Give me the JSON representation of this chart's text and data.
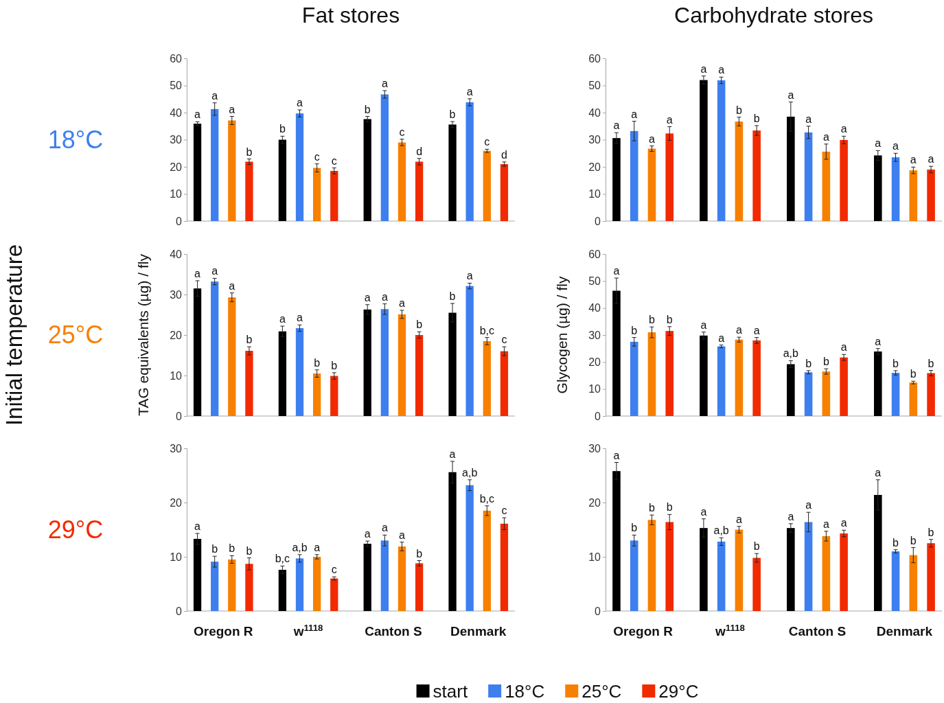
{
  "chart_data": [
    {
      "type": "bar",
      "title": "Fat stores",
      "annotations": [
        "18°C"
      ],
      "categories": [
        null,
        null,
        null,
        null
      ],
      "ylim": [
        0,
        60
      ],
      "yticks": [
        0,
        10,
        20,
        30,
        40,
        50,
        60
      ],
      "tick_labels": "y",
      "series": [
        {
          "color": "#000000",
          "values": [
            35.9,
            30.0,
            37.6,
            35.6
          ],
          "errors": [
            0.7,
            1.3,
            1.0,
            1.1
          ],
          "value_labels": [
            "a",
            "b",
            "b",
            "b"
          ]
        },
        {
          "color": "#3d7fef",
          "values": [
            41.3,
            39.7,
            46.7,
            43.8
          ],
          "errors": [
            2.3,
            1.3,
            1.4,
            1.3
          ],
          "value_labels": [
            "a",
            "a",
            "a",
            "a"
          ]
        },
        {
          "color": "#f78000",
          "values": [
            37.1,
            19.6,
            29.0,
            25.9
          ],
          "errors": [
            1.5,
            1.5,
            1.2,
            0.6
          ],
          "value_labels": [
            "a",
            "c",
            "c",
            "c"
          ]
        },
        {
          "color": "#f22a00",
          "values": [
            21.9,
            18.5,
            21.9,
            21.0
          ],
          "errors": [
            1.0,
            1.1,
            1.2,
            0.8
          ],
          "value_labels": [
            "b",
            "c",
            "d",
            "d"
          ]
        }
      ]
    },
    {
      "type": "bar",
      "title": "Carbohydrate stores",
      "categories": [
        null,
        null,
        null,
        null
      ],
      "ylim": [
        0,
        60
      ],
      "yticks": [
        0,
        10,
        20,
        30,
        40,
        50,
        60
      ],
      "tick_labels": "y",
      "series": [
        {
          "color": "#000000",
          "values": [
            30.6,
            52.0,
            38.5,
            24.2
          ],
          "errors": [
            2.0,
            1.5,
            5.4,
            1.8
          ],
          "value_labels": [
            "a",
            "a",
            "a",
            "a"
          ]
        },
        {
          "color": "#3d7fef",
          "values": [
            33.2,
            51.9,
            32.7,
            23.5
          ],
          "errors": [
            3.6,
            1.2,
            2.3,
            1.5
          ],
          "value_labels": [
            "a",
            "a",
            "a",
            "a"
          ]
        },
        {
          "color": "#f78000",
          "values": [
            26.7,
            36.7,
            25.6,
            18.7
          ],
          "errors": [
            1.0,
            1.6,
            2.8,
            1.2
          ],
          "value_labels": [
            "a",
            "b",
            "a",
            "a"
          ]
        },
        {
          "color": "#f22a00",
          "values": [
            32.3,
            33.4,
            29.9,
            19.0
          ],
          "errors": [
            2.5,
            1.8,
            1.4,
            1.2
          ],
          "value_labels": [
            "a",
            "b",
            "a",
            "a"
          ]
        }
      ]
    },
    {
      "type": "bar",
      "ylabel": "TAG equivalents (µg) / fly",
      "annotations": [
        "25°C",
        "Initial temperature"
      ],
      "categories": [
        null,
        null,
        null,
        null
      ],
      "ylim": [
        0,
        40
      ],
      "yticks": [
        0,
        10,
        20,
        30,
        40
      ],
      "tick_labels": "y",
      "series": [
        {
          "color": "#000000",
          "values": [
            31.5,
            20.9,
            26.3,
            25.5
          ],
          "errors": [
            1.9,
            1.3,
            1.2,
            2.3
          ],
          "value_labels": [
            "a",
            "a",
            "a",
            "b"
          ]
        },
        {
          "color": "#3d7fef",
          "values": [
            33.2,
            21.7,
            26.4,
            32.1
          ],
          "errors": [
            0.8,
            0.8,
            1.3,
            0.7
          ],
          "value_labels": [
            "a",
            "a",
            "a",
            "a"
          ]
        },
        {
          "color": "#f78000",
          "values": [
            29.3,
            10.5,
            25.1,
            18.5
          ],
          "errors": [
            1.1,
            0.9,
            1.0,
            0.9
          ],
          "value_labels": [
            "a",
            "b",
            "a",
            "b,c"
          ]
        },
        {
          "color": "#f22a00",
          "values": [
            16.1,
            9.9,
            20.0,
            16.0
          ],
          "errors": [
            1.0,
            0.8,
            0.8,
            1.1
          ],
          "value_labels": [
            "b",
            "b",
            "b",
            "c"
          ]
        }
      ]
    },
    {
      "type": "bar",
      "ylabel": "Glycogen (µg) / fly",
      "categories": [
        null,
        null,
        null,
        null
      ],
      "ylim": [
        0,
        60
      ],
      "yticks": [
        0,
        10,
        20,
        30,
        40,
        50,
        60
      ],
      "tick_labels": "y",
      "series": [
        {
          "color": "#000000",
          "values": [
            46.4,
            29.8,
            19.2,
            23.9
          ],
          "errors": [
            4.7,
            1.3,
            1.3,
            1.1
          ],
          "value_labels": [
            "a",
            "a",
            "a,b",
            "a"
          ]
        },
        {
          "color": "#3d7fef",
          "values": [
            27.5,
            25.8,
            16.2,
            16.0
          ],
          "errors": [
            1.6,
            0.5,
            0.6,
            0.8
          ],
          "value_labels": [
            "b",
            "a",
            "b",
            "b"
          ]
        },
        {
          "color": "#f78000",
          "values": [
            31.0,
            28.3,
            16.5,
            12.4
          ],
          "errors": [
            2.0,
            0.9,
            1.0,
            0.5
          ],
          "value_labels": [
            "b",
            "a",
            "b",
            "b"
          ]
        },
        {
          "color": "#f22a00",
          "values": [
            31.5,
            28.0,
            21.7,
            15.9
          ],
          "errors": [
            1.6,
            1.1,
            1.1,
            1.0
          ],
          "value_labels": [
            "b",
            "a",
            "a",
            "b"
          ]
        }
      ]
    },
    {
      "type": "bar",
      "annotations": [
        "29°C"
      ],
      "categories": [
        "Oregon R",
        "w$^{1118}$",
        "Canton S",
        "Denmark"
      ],
      "ylim": [
        0,
        30
      ],
      "yticks": [
        0,
        10,
        20,
        30
      ],
      "series": [
        {
          "color": "#000000",
          "values": [
            13.3,
            7.6,
            12.4,
            25.6
          ],
          "errors": [
            1.0,
            0.7,
            0.5,
            2.0
          ],
          "value_labels": [
            "a",
            "b,c",
            "a",
            "a"
          ]
        },
        {
          "color": "#3d7fef",
          "values": [
            9.1,
            9.7,
            13.0,
            23.2
          ],
          "errors": [
            1.0,
            0.7,
            1.0,
            1.0
          ],
          "value_labels": [
            "b",
            "a,b",
            "a",
            "a,b"
          ]
        },
        {
          "color": "#f78000",
          "values": [
            9.5,
            10.0,
            11.9,
            18.5
          ],
          "errors": [
            0.7,
            0.4,
            0.8,
            0.9
          ],
          "value_labels": [
            "b",
            "a",
            "a",
            "b,c"
          ]
        },
        {
          "color": "#f22a00",
          "values": [
            8.7,
            6.0,
            8.8,
            16.1
          ],
          "errors": [
            1.1,
            0.3,
            0.5,
            1.1
          ],
          "value_labels": [
            "b",
            "c",
            "b",
            "c"
          ]
        }
      ]
    },
    {
      "type": "bar",
      "legend": "bottom",
      "categories": [
        "Oregon R",
        "w$^{1118}$",
        "Canton S",
        "Denmark"
      ],
      "ylim": [
        0,
        30
      ],
      "yticks": [
        0,
        10,
        20,
        30
      ],
      "series": [
        {
          "name": "start",
          "color": "#000000",
          "values": [
            25.8,
            15.3,
            15.3,
            21.4
          ],
          "errors": [
            1.6,
            1.7,
            0.8,
            2.8
          ],
          "value_labels": [
            "a",
            "a",
            "a",
            "a"
          ]
        },
        {
          "name": "18°C",
          "color": "#3d7fef",
          "values": [
            13.0,
            12.8,
            16.4,
            11.0
          ],
          "errors": [
            1.0,
            0.7,
            1.8,
            0.3
          ],
          "value_labels": [
            "b",
            "a,b",
            "a",
            "b"
          ]
        },
        {
          "name": "25°C",
          "color": "#f78000",
          "values": [
            16.8,
            15.0,
            13.8,
            10.3
          ],
          "errors": [
            0.9,
            0.6,
            0.9,
            1.4
          ],
          "value_labels": [
            "b",
            "a",
            "a",
            "b"
          ]
        },
        {
          "name": "29°C",
          "color": "#f22a00",
          "values": [
            16.4,
            9.8,
            14.3,
            12.5
          ],
          "errors": [
            1.4,
            0.8,
            0.6,
            0.7
          ],
          "value_labels": [
            "b",
            "b",
            "a",
            "b"
          ]
        }
      ]
    }
  ]
}
